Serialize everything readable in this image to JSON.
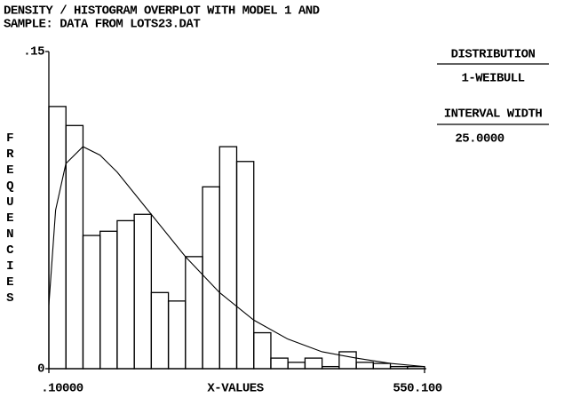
{
  "chart_data": {
    "type": "histogram",
    "title": [
      "DENSITY / HISTOGRAM OVERPLOT WITH MODEL 1 AND",
      "SAMPLE: DATA FROM LOTS23.DAT"
    ],
    "xlabel": "X-VALUES",
    "ylabel": "FREQUENCIES",
    "bins": [
      0.1,
      25.1,
      50.1,
      75.1,
      100.1,
      125.1,
      150.1,
      175.1,
      200.1,
      225.1,
      250.1,
      275.1,
      300.1,
      325.1,
      350.1,
      375.1,
      400.1,
      425.1,
      450.1,
      475.1,
      500.1,
      525.1,
      550.1
    ],
    "values": [
      0.124,
      0.115,
      0.063,
      0.065,
      0.07,
      0.073,
      0.036,
      0.032,
      0.053,
      0.086,
      0.105,
      0.098,
      0.017,
      0.005,
      0.003,
      0.005,
      0.001,
      0.008,
      0.003,
      0.0025,
      0.001,
      0.001
    ],
    "color": "#000000",
    "density": {
      "x": [
        0.1,
        10,
        25,
        50,
        75,
        100,
        150,
        200,
        250,
        300,
        350,
        400,
        450,
        500,
        550
      ],
      "values": [
        0.03,
        0.075,
        0.097,
        0.105,
        0.101,
        0.093,
        0.073,
        0.053,
        0.036,
        0.023,
        0.014,
        0.008,
        0.005,
        0.0025,
        0.001
      ],
      "color": "#000000"
    },
    "xlim": [
      0.1,
      550.1
    ],
    "xticks": [
      {
        "value": 0.1,
        "label": ".10000"
      },
      {
        "value": 550.1,
        "label": "550.100"
      }
    ],
    "ylim": [
      0,
      0.15
    ],
    "yticks": [
      0,
      {
        "value": 0.15,
        "label": ".15"
      }
    ],
    "panel": {
      "distribution_heading": "DISTRIBUTION",
      "distribution": "1-WEIBULL",
      "interval_heading": "INTERVAL WIDTH",
      "interval": "25.0000"
    }
  }
}
